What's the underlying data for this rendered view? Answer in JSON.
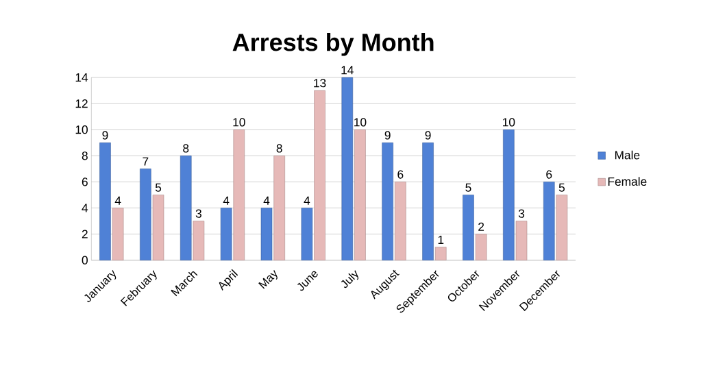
{
  "chart_data": {
    "type": "bar",
    "title": "Arrests by Month",
    "categories": [
      "January",
      "February",
      "March",
      "April",
      "May",
      "June",
      "July",
      "August",
      "September",
      "October",
      "November",
      "December"
    ],
    "series": [
      {
        "name": "Male",
        "color": "#4f81d6",
        "values": [
          9,
          7,
          8,
          4,
          4,
          4,
          14,
          9,
          9,
          5,
          10,
          6
        ]
      },
      {
        "name": "Female",
        "color": "#e6b9b8",
        "values": [
          4,
          5,
          3,
          10,
          8,
          13,
          10,
          6,
          1,
          2,
          3,
          5
        ]
      }
    ],
    "ylim": [
      0,
      14
    ],
    "yticks": [
      0,
      2,
      4,
      6,
      8,
      10,
      12,
      14
    ],
    "grid": "y",
    "legend": "right",
    "data_labels": true
  }
}
